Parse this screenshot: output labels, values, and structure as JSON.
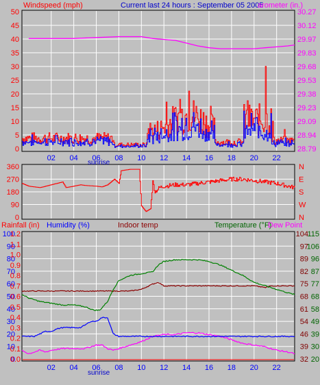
{
  "header": {
    "windspeed_label": "Windspeed (mph)",
    "title": "Current last 24 hours : September 05 2005",
    "barometer_label": "arometer (in.)"
  },
  "legend3": {
    "rainfall": "Rainfall (in)",
    "humidity": "Humidity (%)",
    "indoor": "Indoor temp",
    "temperature": "Temperature (°F)",
    "dewpoint": "Dew Point"
  },
  "sunrise_label": "sunrise",
  "colors": {
    "bg": "#c0c0c0",
    "frame": "#000000",
    "grid": "#ffffff",
    "red": "#ff0000",
    "blue": "#0000ff",
    "magenta": "#ff00ff",
    "green": "#008000",
    "dark_red": "#8b0000",
    "axis_blue": "#0000ff",
    "axis_purple": "#cc00cc",
    "axis_green": "#006400",
    "axis_darkred": "#800000"
  },
  "chart_data": [
    {
      "type": "line",
      "name": "wind-barometer",
      "x_ticks": [
        "02",
        "04",
        "06",
        "08",
        "10",
        "12",
        "14",
        "16",
        "18",
        "20",
        "22"
      ],
      "left_axis": {
        "label": "Windspeed (mph)",
        "ticks": [
          0,
          5,
          10,
          15,
          20,
          25,
          30,
          35,
          40,
          45,
          50
        ],
        "ylim": [
          0,
          50
        ]
      },
      "right_axis": {
        "label": "arometer (in.)",
        "ticks": [
          "28.79",
          "28.94",
          "29.09",
          "29.23",
          "29.38",
          "29.53",
          "29.68",
          "29.83",
          "29.97",
          "30.12",
          "30.27"
        ],
        "ylim": [
          28.79,
          30.27
        ]
      },
      "barometer": [
        [
          0,
          29.98
        ],
        [
          2,
          29.98
        ],
        [
          4,
          29.98
        ],
        [
          6,
          29.99
        ],
        [
          8,
          30.0
        ],
        [
          10,
          30.0
        ],
        [
          11,
          29.98
        ],
        [
          13,
          29.96
        ],
        [
          14,
          29.93
        ],
        [
          15,
          29.9
        ],
        [
          16,
          29.88
        ],
        [
          17,
          29.87
        ],
        [
          18,
          29.87
        ],
        [
          19,
          29.87
        ],
        [
          20,
          29.87
        ],
        [
          21,
          29.88
        ],
        [
          22,
          29.89
        ],
        [
          23,
          29.9
        ],
        [
          23.6,
          29.91
        ]
      ],
      "gust_peaks": [
        [
          12.2,
          17
        ],
        [
          13.4,
          18
        ],
        [
          14.2,
          21
        ],
        [
          16.1,
          15.5
        ],
        [
          19.4,
          17.5
        ],
        [
          21.0,
          30
        ],
        [
          21.6,
          10
        ],
        [
          22.7,
          7
        ]
      ]
    },
    {
      "type": "line",
      "name": "wind-direction",
      "left_axis": {
        "ticks": [
          0,
          90,
          180,
          270,
          360
        ],
        "ylim": [
          0,
          360
        ]
      },
      "right_axis": {
        "ticks": [
          "N",
          "W",
          "S",
          "E",
          "N"
        ]
      },
      "direction": [
        [
          -0.6,
          240
        ],
        [
          0,
          220
        ],
        [
          1,
          210
        ],
        [
          2,
          230
        ],
        [
          3,
          250
        ],
        [
          3.3,
          210
        ],
        [
          4,
          220
        ],
        [
          4.6,
          230
        ],
        [
          5,
          225
        ],
        [
          6,
          220
        ],
        [
          6.5,
          215
        ],
        [
          7,
          230
        ],
        [
          7.6,
          270
        ],
        [
          8,
          240
        ],
        [
          8.2,
          330
        ],
        [
          9,
          340
        ],
        [
          9.8,
          340
        ],
        [
          10,
          80
        ],
        [
          10.4,
          40
        ],
        [
          10.8,
          60
        ],
        [
          11,
          250
        ],
        [
          11.2,
          180
        ],
        [
          11.6,
          210
        ],
        [
          12,
          220
        ],
        [
          13,
          230
        ],
        [
          14,
          230
        ],
        [
          15,
          240
        ],
        [
          16,
          250
        ],
        [
          17,
          260
        ],
        [
          17.5,
          265
        ],
        [
          18,
          270
        ],
        [
          19,
          270
        ],
        [
          20,
          260
        ],
        [
          21,
          250
        ],
        [
          22,
          240
        ],
        [
          23,
          220
        ],
        [
          23.6,
          210
        ]
      ]
    },
    {
      "type": "line",
      "name": "rain-humidity-temperature",
      "rain_axis": {
        "label": "Rainfall (in)",
        "ticks": [
          "0.0",
          "0.1",
          "0.2",
          "0.3",
          "0.4",
          "0.5",
          "0.6",
          "0.7",
          "0.8",
          "0.9",
          "1.0",
          "1.1",
          "1.2"
        ],
        "ylim": [
          0,
          1.2
        ]
      },
      "humidity_axis": {
        "label": "Humidity (%)",
        "ticks": [
          0,
          10,
          20,
          30,
          40,
          50,
          60,
          70,
          80,
          90,
          100
        ],
        "ylim": [
          0,
          100
        ]
      },
      "temp_axis_f": {
        "label": "Temperature (°F)",
        "ticks": [
          32,
          39,
          46,
          54,
          61,
          68,
          75,
          82,
          89,
          97,
          104
        ],
        "ylim": [
          32,
          104
        ]
      },
      "temp_axis_c": {
        "ticks": [
          20,
          30,
          39,
          49,
          58,
          68,
          77,
          87,
          96,
          106,
          115
        ]
      },
      "temperature": [
        [
          -0.6,
          69
        ],
        [
          0,
          67
        ],
        [
          1,
          65
        ],
        [
          2,
          64
        ],
        [
          3,
          63
        ],
        [
          4,
          63
        ],
        [
          5,
          62
        ],
        [
          5.8,
          60
        ],
        [
          6.3,
          60
        ],
        [
          7,
          65
        ],
        [
          7.5,
          72
        ],
        [
          8,
          77
        ],
        [
          9,
          80
        ],
        [
          10,
          81
        ],
        [
          11,
          82
        ],
        [
          11.5,
          86
        ],
        [
          12,
          88
        ],
        [
          13,
          89
        ],
        [
          14,
          89
        ],
        [
          15,
          89
        ],
        [
          16,
          88
        ],
        [
          17,
          86
        ],
        [
          18,
          83
        ],
        [
          19,
          80
        ],
        [
          20,
          76
        ],
        [
          21,
          74
        ],
        [
          22,
          72
        ],
        [
          23,
          70
        ],
        [
          23.6,
          69
        ]
      ],
      "indoor_temp": [
        [
          -0.6,
          71
        ],
        [
          2,
          71
        ],
        [
          5,
          71
        ],
        [
          7,
          71
        ],
        [
          9,
          71
        ],
        [
          10,
          72
        ],
        [
          11,
          75
        ],
        [
          11.5,
          76
        ],
        [
          12,
          74
        ],
        [
          13,
          74
        ],
        [
          14,
          74
        ],
        [
          16,
          74
        ],
        [
          18,
          74
        ],
        [
          20,
          74
        ],
        [
          21,
          73
        ],
        [
          21.5,
          74
        ],
        [
          23.6,
          74
        ]
      ],
      "humidity": [
        [
          -0.6,
          18
        ],
        [
          0,
          18
        ],
        [
          0.5,
          18
        ],
        [
          1,
          20
        ],
        [
          1.5,
          22
        ],
        [
          2,
          22
        ],
        [
          2.5,
          24
        ],
        [
          3,
          25
        ],
        [
          4,
          25
        ],
        [
          4.6,
          25
        ],
        [
          5,
          27
        ],
        [
          5.5,
          30
        ],
        [
          6,
          30
        ],
        [
          6.5,
          33
        ],
        [
          7,
          33
        ],
        [
          7.5,
          20
        ],
        [
          8,
          18
        ],
        [
          9,
          18
        ],
        [
          23.6,
          18
        ]
      ],
      "dew_point": [
        [
          -0.6,
          37
        ],
        [
          0,
          35
        ],
        [
          0.5,
          36
        ],
        [
          1,
          37
        ],
        [
          1.5,
          36
        ],
        [
          2,
          37
        ],
        [
          3,
          38
        ],
        [
          4,
          38
        ],
        [
          5,
          38
        ],
        [
          5.5,
          39
        ],
        [
          6,
          40
        ],
        [
          6.5,
          40
        ],
        [
          7,
          38
        ],
        [
          7.5,
          37
        ],
        [
          8,
          38
        ],
        [
          9,
          40
        ],
        [
          10,
          42
        ],
        [
          11,
          45
        ],
        [
          12,
          46
        ],
        [
          13,
          46
        ],
        [
          14,
          47
        ],
        [
          15,
          47
        ],
        [
          16,
          46
        ],
        [
          17,
          45
        ],
        [
          18,
          43
        ],
        [
          19,
          41
        ],
        [
          20,
          40
        ],
        [
          21,
          39
        ],
        [
          22,
          37
        ],
        [
          23,
          36
        ],
        [
          23.6,
          35
        ]
      ]
    }
  ]
}
